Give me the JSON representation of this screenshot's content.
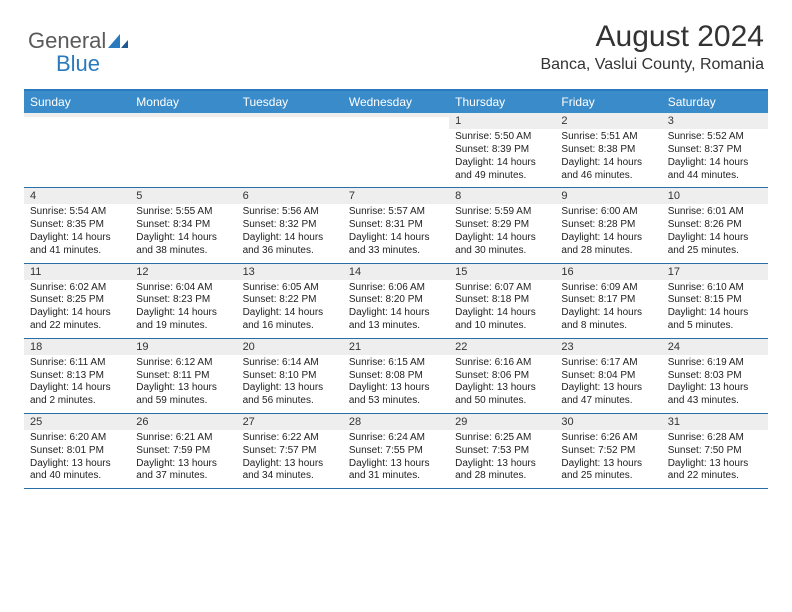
{
  "logo": {
    "part1": "General",
    "part2": "Blue"
  },
  "title": "August 2024",
  "location": "Banca, Vaslui County, Romania",
  "colors": {
    "header_bg": "#3a8bc9",
    "border": "#2a7abf",
    "daynum_bg": "#eeeeee",
    "text": "#333333"
  },
  "day_names": [
    "Sunday",
    "Monday",
    "Tuesday",
    "Wednesday",
    "Thursday",
    "Friday",
    "Saturday"
  ],
  "weeks": [
    [
      {
        "n": "",
        "sr": "",
        "ss": "",
        "dl1": "",
        "dl2": ""
      },
      {
        "n": "",
        "sr": "",
        "ss": "",
        "dl1": "",
        "dl2": ""
      },
      {
        "n": "",
        "sr": "",
        "ss": "",
        "dl1": "",
        "dl2": ""
      },
      {
        "n": "",
        "sr": "",
        "ss": "",
        "dl1": "",
        "dl2": ""
      },
      {
        "n": "1",
        "sr": "Sunrise: 5:50 AM",
        "ss": "Sunset: 8:39 PM",
        "dl1": "Daylight: 14 hours",
        "dl2": "and 49 minutes."
      },
      {
        "n": "2",
        "sr": "Sunrise: 5:51 AM",
        "ss": "Sunset: 8:38 PM",
        "dl1": "Daylight: 14 hours",
        "dl2": "and 46 minutes."
      },
      {
        "n": "3",
        "sr": "Sunrise: 5:52 AM",
        "ss": "Sunset: 8:37 PM",
        "dl1": "Daylight: 14 hours",
        "dl2": "and 44 minutes."
      }
    ],
    [
      {
        "n": "4",
        "sr": "Sunrise: 5:54 AM",
        "ss": "Sunset: 8:35 PM",
        "dl1": "Daylight: 14 hours",
        "dl2": "and 41 minutes."
      },
      {
        "n": "5",
        "sr": "Sunrise: 5:55 AM",
        "ss": "Sunset: 8:34 PM",
        "dl1": "Daylight: 14 hours",
        "dl2": "and 38 minutes."
      },
      {
        "n": "6",
        "sr": "Sunrise: 5:56 AM",
        "ss": "Sunset: 8:32 PM",
        "dl1": "Daylight: 14 hours",
        "dl2": "and 36 minutes."
      },
      {
        "n": "7",
        "sr": "Sunrise: 5:57 AM",
        "ss": "Sunset: 8:31 PM",
        "dl1": "Daylight: 14 hours",
        "dl2": "and 33 minutes."
      },
      {
        "n": "8",
        "sr": "Sunrise: 5:59 AM",
        "ss": "Sunset: 8:29 PM",
        "dl1": "Daylight: 14 hours",
        "dl2": "and 30 minutes."
      },
      {
        "n": "9",
        "sr": "Sunrise: 6:00 AM",
        "ss": "Sunset: 8:28 PM",
        "dl1": "Daylight: 14 hours",
        "dl2": "and 28 minutes."
      },
      {
        "n": "10",
        "sr": "Sunrise: 6:01 AM",
        "ss": "Sunset: 8:26 PM",
        "dl1": "Daylight: 14 hours",
        "dl2": "and 25 minutes."
      }
    ],
    [
      {
        "n": "11",
        "sr": "Sunrise: 6:02 AM",
        "ss": "Sunset: 8:25 PM",
        "dl1": "Daylight: 14 hours",
        "dl2": "and 22 minutes."
      },
      {
        "n": "12",
        "sr": "Sunrise: 6:04 AM",
        "ss": "Sunset: 8:23 PM",
        "dl1": "Daylight: 14 hours",
        "dl2": "and 19 minutes."
      },
      {
        "n": "13",
        "sr": "Sunrise: 6:05 AM",
        "ss": "Sunset: 8:22 PM",
        "dl1": "Daylight: 14 hours",
        "dl2": "and 16 minutes."
      },
      {
        "n": "14",
        "sr": "Sunrise: 6:06 AM",
        "ss": "Sunset: 8:20 PM",
        "dl1": "Daylight: 14 hours",
        "dl2": "and 13 minutes."
      },
      {
        "n": "15",
        "sr": "Sunrise: 6:07 AM",
        "ss": "Sunset: 8:18 PM",
        "dl1": "Daylight: 14 hours",
        "dl2": "and 10 minutes."
      },
      {
        "n": "16",
        "sr": "Sunrise: 6:09 AM",
        "ss": "Sunset: 8:17 PM",
        "dl1": "Daylight: 14 hours",
        "dl2": "and 8 minutes."
      },
      {
        "n": "17",
        "sr": "Sunrise: 6:10 AM",
        "ss": "Sunset: 8:15 PM",
        "dl1": "Daylight: 14 hours",
        "dl2": "and 5 minutes."
      }
    ],
    [
      {
        "n": "18",
        "sr": "Sunrise: 6:11 AM",
        "ss": "Sunset: 8:13 PM",
        "dl1": "Daylight: 14 hours",
        "dl2": "and 2 minutes."
      },
      {
        "n": "19",
        "sr": "Sunrise: 6:12 AM",
        "ss": "Sunset: 8:11 PM",
        "dl1": "Daylight: 13 hours",
        "dl2": "and 59 minutes."
      },
      {
        "n": "20",
        "sr": "Sunrise: 6:14 AM",
        "ss": "Sunset: 8:10 PM",
        "dl1": "Daylight: 13 hours",
        "dl2": "and 56 minutes."
      },
      {
        "n": "21",
        "sr": "Sunrise: 6:15 AM",
        "ss": "Sunset: 8:08 PM",
        "dl1": "Daylight: 13 hours",
        "dl2": "and 53 minutes."
      },
      {
        "n": "22",
        "sr": "Sunrise: 6:16 AM",
        "ss": "Sunset: 8:06 PM",
        "dl1": "Daylight: 13 hours",
        "dl2": "and 50 minutes."
      },
      {
        "n": "23",
        "sr": "Sunrise: 6:17 AM",
        "ss": "Sunset: 8:04 PM",
        "dl1": "Daylight: 13 hours",
        "dl2": "and 47 minutes."
      },
      {
        "n": "24",
        "sr": "Sunrise: 6:19 AM",
        "ss": "Sunset: 8:03 PM",
        "dl1": "Daylight: 13 hours",
        "dl2": "and 43 minutes."
      }
    ],
    [
      {
        "n": "25",
        "sr": "Sunrise: 6:20 AM",
        "ss": "Sunset: 8:01 PM",
        "dl1": "Daylight: 13 hours",
        "dl2": "and 40 minutes."
      },
      {
        "n": "26",
        "sr": "Sunrise: 6:21 AM",
        "ss": "Sunset: 7:59 PM",
        "dl1": "Daylight: 13 hours",
        "dl2": "and 37 minutes."
      },
      {
        "n": "27",
        "sr": "Sunrise: 6:22 AM",
        "ss": "Sunset: 7:57 PM",
        "dl1": "Daylight: 13 hours",
        "dl2": "and 34 minutes."
      },
      {
        "n": "28",
        "sr": "Sunrise: 6:24 AM",
        "ss": "Sunset: 7:55 PM",
        "dl1": "Daylight: 13 hours",
        "dl2": "and 31 minutes."
      },
      {
        "n": "29",
        "sr": "Sunrise: 6:25 AM",
        "ss": "Sunset: 7:53 PM",
        "dl1": "Daylight: 13 hours",
        "dl2": "and 28 minutes."
      },
      {
        "n": "30",
        "sr": "Sunrise: 6:26 AM",
        "ss": "Sunset: 7:52 PM",
        "dl1": "Daylight: 13 hours",
        "dl2": "and 25 minutes."
      },
      {
        "n": "31",
        "sr": "Sunrise: 6:28 AM",
        "ss": "Sunset: 7:50 PM",
        "dl1": "Daylight: 13 hours",
        "dl2": "and 22 minutes."
      }
    ]
  ]
}
